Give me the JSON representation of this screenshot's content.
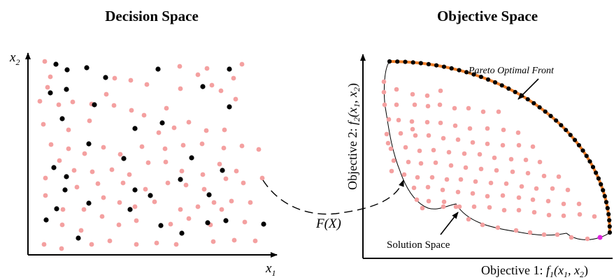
{
  "left_panel": {
    "title": "Decision Space",
    "x_axis_label": "x",
    "x_axis_subscript": "1",
    "y_axis_label": "x",
    "y_axis_subscript": "2"
  },
  "right_panel": {
    "title": "Objective Space",
    "x_axis_label_prefix": "Objective 1: ",
    "x_axis_label_func": "f",
    "x_axis_label_func_sub": "1",
    "x_axis_label_args": "(x",
    "x_axis_label_arg1_sub": "1",
    "x_axis_label_sep": ", x",
    "x_axis_label_arg2_sub": "2",
    "x_axis_label_close": ")",
    "y_axis_label_prefix": "Objective 2: ",
    "y_axis_label_func": "f",
    "y_axis_label_func_sub": "2",
    "y_axis_label_args": "(x",
    "y_axis_label_arg1_sub": "1",
    "y_axis_label_sep": ", x",
    "y_axis_label_arg2_sub": "2",
    "y_axis_label_close": ")"
  },
  "annotations": {
    "mapping": "F(X)",
    "pareto_front": "Pareto Optimal Front",
    "solution_space": "Solution Space"
  },
  "colors": {
    "pink_point": "#f4a0a0",
    "black_point": "#000000",
    "pareto_line": "#ef7f2a",
    "highlight_point": "#e020e0"
  }
}
